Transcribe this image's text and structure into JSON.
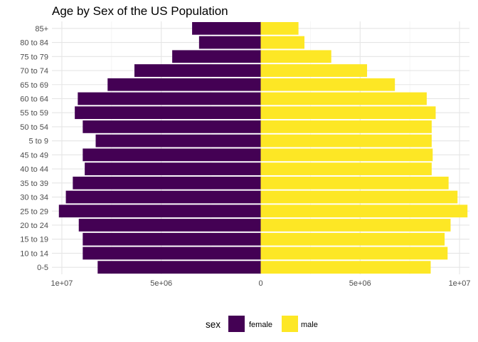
{
  "chart_data": {
    "type": "bar",
    "orientation": "horizontal",
    "title": "Age by Sex of the US Population",
    "xlabel": "",
    "ylabel": "",
    "categories": [
      "0-5",
      "10 to 14",
      "15 to 19",
      "20 to 24",
      "25 to 29",
      "30 to 34",
      "35 to 39",
      "40 to 44",
      "45 to 49",
      "5 to 9",
      "50 to 54",
      "55 to 59",
      "60 to 64",
      "65 to 69",
      "70 to 74",
      "75 to 79",
      "80 to 84",
      "85+"
    ],
    "series": [
      {
        "name": "female",
        "color": "#440154",
        "values": [
          -8200000,
          -8950000,
          -8950000,
          -9150000,
          -10150000,
          -9800000,
          -9450000,
          -8850000,
          -8950000,
          -8300000,
          -8950000,
          -9350000,
          -9200000,
          -7700000,
          -6350000,
          -4450000,
          -3100000,
          -3450000
        ]
      },
      {
        "name": "male",
        "color": "#FDE725",
        "values": [
          8550000,
          9400000,
          9250000,
          9550000,
          10400000,
          9900000,
          9450000,
          8600000,
          8650000,
          8600000,
          8600000,
          8800000,
          8350000,
          6750000,
          5350000,
          3550000,
          2200000,
          1900000
        ]
      }
    ],
    "xlim": [
      -10500000,
      10500000
    ],
    "xticks": [
      {
        "value": -10000000,
        "label": "1e+07"
      },
      {
        "value": -5000000,
        "label": "5e+06"
      },
      {
        "value": 0,
        "label": "0"
      },
      {
        "value": 5000000,
        "label": "5e+06"
      },
      {
        "value": 10000000,
        "label": "1e+07"
      }
    ],
    "grid": true,
    "legend": {
      "title": "sex",
      "position": "bottom",
      "entries": [
        "female",
        "male"
      ]
    }
  }
}
